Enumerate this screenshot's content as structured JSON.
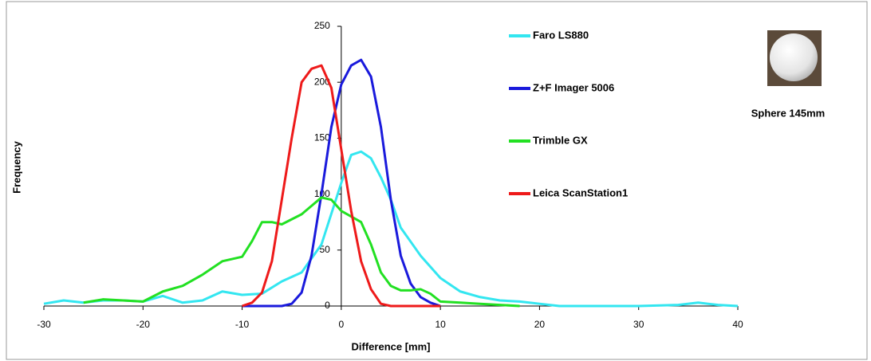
{
  "chart_data": {
    "type": "line",
    "x_label": "Difference [mm]",
    "y_label": "Frequency",
    "annotation": "Sphere 145mm",
    "xlim": [
      -30,
      40
    ],
    "xticks": [
      -30,
      -20,
      -10,
      0,
      10,
      20,
      30,
      40
    ],
    "ylim": [
      0,
      250
    ],
    "yticks": [
      0,
      50,
      100,
      150,
      200,
      250
    ],
    "grid": false,
    "legend": "right",
    "series": [
      {
        "name": "Faro LS880",
        "color": "#33e6f0",
        "x": [
          -30,
          -28,
          -26,
          -24,
          -22,
          -20,
          -18,
          -16,
          -14,
          -12,
          -10,
          -8,
          -6,
          -4,
          -2,
          0,
          1,
          2,
          3,
          4,
          5,
          6,
          8,
          10,
          12,
          14,
          16,
          18,
          20,
          22,
          25,
          30,
          34,
          36,
          38,
          40
        ],
        "values": [
          2,
          5,
          3,
          5,
          5,
          4,
          9,
          3,
          5,
          13,
          10,
          11,
          22,
          30,
          55,
          110,
          135,
          138,
          132,
          115,
          95,
          70,
          45,
          25,
          13,
          8,
          5,
          4,
          2,
          0,
          0,
          0,
          1,
          3,
          1,
          0
        ]
      },
      {
        "name": "Z+F Imager 5006",
        "color": "#1a1adc",
        "x": [
          -10,
          -6,
          -5,
          -4,
          -3,
          -2,
          -1,
          0,
          1,
          2,
          3,
          4,
          5,
          6,
          7,
          8,
          9,
          10
        ],
        "values": [
          0,
          0,
          2,
          12,
          45,
          100,
          160,
          198,
          215,
          220,
          205,
          160,
          95,
          45,
          20,
          8,
          3,
          0
        ]
      },
      {
        "name": "Trimble GX",
        "color": "#22e022",
        "x": [
          -26,
          -24,
          -22,
          -20,
          -18,
          -16,
          -14,
          -12,
          -10,
          -9,
          -8,
          -7,
          -6,
          -4,
          -2,
          -1,
          0,
          1,
          2,
          3,
          4,
          5,
          6,
          7,
          8,
          9,
          10,
          12,
          14,
          16,
          18
        ],
        "values": [
          3,
          6,
          5,
          4,
          13,
          18,
          28,
          40,
          44,
          58,
          75,
          75,
          73,
          82,
          97,
          95,
          85,
          80,
          75,
          55,
          30,
          18,
          14,
          14,
          15,
          11,
          4,
          3,
          2,
          1,
          0
        ]
      },
      {
        "name": "Leica ScanStation1",
        "color": "#ee1a1a",
        "x": [
          -10,
          -9,
          -8,
          -7,
          -6,
          -5,
          -4,
          -3,
          -2,
          -1,
          0,
          1,
          2,
          3,
          4,
          5,
          6,
          8,
          10
        ],
        "values": [
          0,
          3,
          12,
          40,
          95,
          150,
          200,
          212,
          215,
          195,
          140,
          85,
          40,
          15,
          2,
          0,
          0,
          0,
          0
        ]
      }
    ]
  }
}
